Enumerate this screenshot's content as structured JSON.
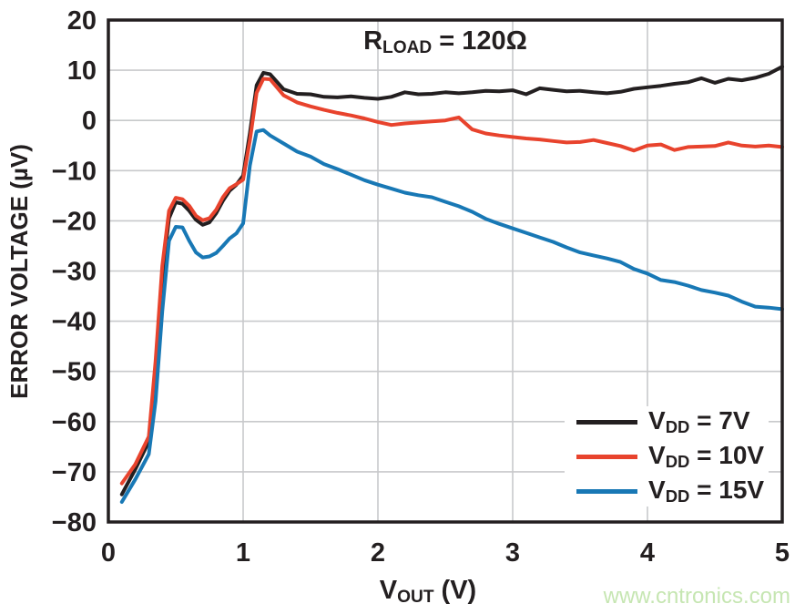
{
  "title": {
    "prefix": "R",
    "sub": "LOAD",
    "rest": " = 120Ω"
  },
  "xlabel": {
    "prefix": "V",
    "sub": "OUT",
    "rest": " (V)"
  },
  "ylabel": "ERROR VOLTAGE (µV)",
  "watermark": {
    "text": "www.cntronics.com",
    "color": "#c6e6b2"
  },
  "legend": {
    "items": [
      {
        "prefix": "V",
        "sub": "DD",
        "rest": " = 7V"
      },
      {
        "prefix": "V",
        "sub": "DD",
        "rest": " = 10V"
      },
      {
        "prefix": "V",
        "sub": "DD",
        "rest": " = 15V"
      }
    ]
  },
  "colors": {
    "text": "#231f20",
    "grid": "#c8c9cb",
    "border": "#231f20"
  },
  "chart_data": {
    "type": "line",
    "title": "",
    "annotation": "RLOAD = 120Ω",
    "xlabel": "VOUT (V)",
    "ylabel": "ERROR VOLTAGE (µV)",
    "xlim": [
      0,
      5
    ],
    "ylim": [
      -80,
      20
    ],
    "grid": true,
    "legend_position": "lower right",
    "x_ticks": {
      "values": [
        0,
        1,
        2,
        3,
        4,
        5
      ],
      "labels": [
        "0",
        "1",
        "2",
        "3",
        "4",
        "5"
      ]
    },
    "y_ticks": {
      "values": [
        20,
        10,
        0,
        -10,
        -20,
        -30,
        -40,
        -50,
        -60,
        -70,
        -80
      ],
      "labels": [
        "20",
        "10",
        "0",
        "−10",
        "−20",
        "−30",
        "−40",
        "−50",
        "−60",
        "−70",
        "−80"
      ]
    },
    "x_gridlines": [
      1,
      2,
      3,
      4
    ],
    "y_gridlines": [
      10,
      0,
      -10,
      -20,
      -30,
      -40,
      -50,
      -60,
      -70
    ],
    "x": [
      0.1,
      0.2,
      0.3,
      0.35,
      0.4,
      0.45,
      0.5,
      0.55,
      0.6,
      0.65,
      0.7,
      0.75,
      0.8,
      0.85,
      0.9,
      0.95,
      1.0,
      1.05,
      1.1,
      1.15,
      1.2,
      1.3,
      1.4,
      1.5,
      1.6,
      1.7,
      1.8,
      1.9,
      2.0,
      2.1,
      2.2,
      2.3,
      2.4,
      2.5,
      2.6,
      2.7,
      2.8,
      2.9,
      3.0,
      3.1,
      3.2,
      3.3,
      3.4,
      3.5,
      3.6,
      3.7,
      3.8,
      3.9,
      4.0,
      4.1,
      4.2,
      4.3,
      4.4,
      4.5,
      4.6,
      4.7,
      4.8,
      4.9,
      5.0
    ],
    "series": [
      {
        "name": "VDD = 7V",
        "color": "#231f20",
        "values": [
          -74.5,
          -69.5,
          -64,
          -50,
          -31,
          -19.5,
          -16.3,
          -16.6,
          -18,
          -19.8,
          -20.8,
          -20.3,
          -18.5,
          -16,
          -14,
          -12.8,
          -11,
          -2.5,
          7,
          9.5,
          9.2,
          6.2,
          5.3,
          5.2,
          4.7,
          4.6,
          4.8,
          4.5,
          4.3,
          4.7,
          5.6,
          5.2,
          5.3,
          5.6,
          5.4,
          5.6,
          5.9,
          5.8,
          6.0,
          5.2,
          6.4,
          6.1,
          5.8,
          5.9,
          5.6,
          5.4,
          5.7,
          6.3,
          6.6,
          6.9,
          7.3,
          7.6,
          8.4,
          7.5,
          8.3,
          8.0,
          8.5,
          9.3,
          10.7
        ]
      },
      {
        "name": "VDD = 10V",
        "color": "#e8432d",
        "values": [
          -72.3,
          -68.5,
          -63,
          -48,
          -29,
          -18,
          -15.4,
          -15.7,
          -17,
          -19,
          -19.9,
          -19.5,
          -17.8,
          -15.3,
          -13.5,
          -12.7,
          -11.8,
          -4,
          5.5,
          8.3,
          8.2,
          5.0,
          3.6,
          2.8,
          2.1,
          1.5,
          1.0,
          0.4,
          -0.3,
          -0.9,
          -0.6,
          -0.4,
          -0.2,
          0.0,
          0.6,
          -1.8,
          -2.6,
          -3.0,
          -3.3,
          -3.6,
          -3.8,
          -4.1,
          -4.4,
          -4.3,
          -3.9,
          -4.5,
          -5.1,
          -6.0,
          -5.0,
          -4.8,
          -5.9,
          -5.3,
          -5.2,
          -5.1,
          -4.4,
          -5.0,
          -5.2,
          -5.0,
          -5.3
        ]
      },
      {
        "name": "VDD = 15V",
        "color": "#1878b5",
        "values": [
          -76,
          -71.5,
          -66.5,
          -56,
          -38,
          -24,
          -21.2,
          -21.3,
          -24,
          -26.3,
          -27.3,
          -27.1,
          -26.4,
          -25,
          -23.5,
          -22.5,
          -20.5,
          -9,
          -2.2,
          -1.9,
          -3.0,
          -4.6,
          -6.2,
          -7.2,
          -8.7,
          -9.7,
          -10.8,
          -11.9,
          -12.8,
          -13.6,
          -14.4,
          -14.9,
          -15.3,
          -16.2,
          -17.1,
          -18.2,
          -19.6,
          -20.6,
          -21.5,
          -22.4,
          -23.3,
          -24.2,
          -25.3,
          -26.3,
          -26.9,
          -27.5,
          -28.2,
          -29.6,
          -30.5,
          -31.8,
          -32.2,
          -32.9,
          -33.8,
          -34.3,
          -34.9,
          -36.1,
          -37.1,
          -37.3,
          -37.6
        ]
      }
    ]
  }
}
